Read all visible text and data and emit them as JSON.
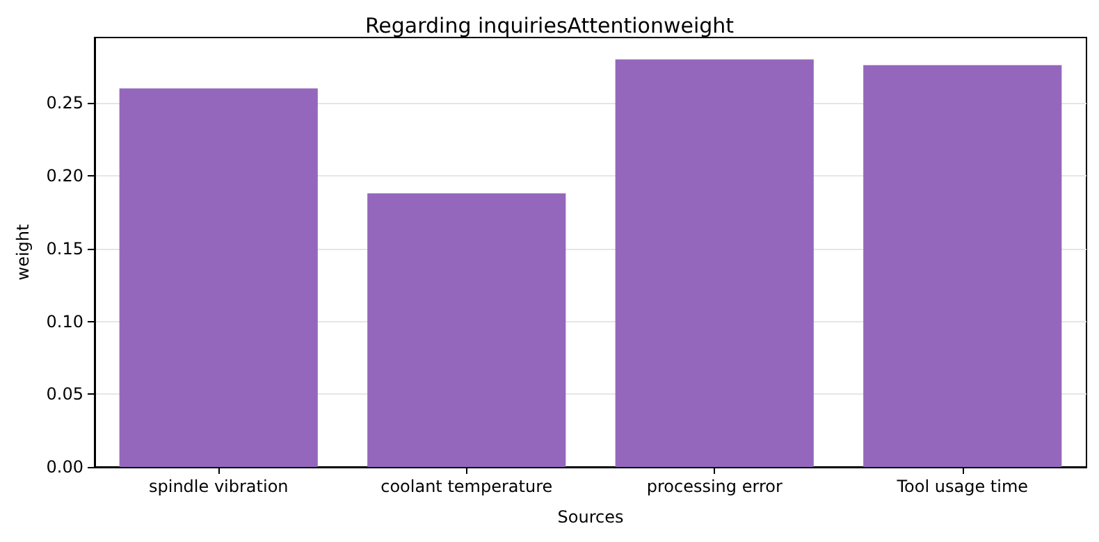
{
  "chart_data": {
    "type": "bar",
    "title": "Regarding inquiriesAttentionweight",
    "xlabel": "Sources",
    "ylabel": "weight",
    "categories": [
      "spindle vibration",
      "coolant temperature",
      "processing error",
      "Tool usage time"
    ],
    "values": [
      0.26,
      0.188,
      0.28,
      0.276
    ],
    "color": "#9467bd",
    "ylim": [
      0,
      0.295
    ],
    "yticks": [
      {
        "value": 0,
        "label": "0.00"
      },
      0.05,
      {
        "value": 0.1,
        "label": "0.10"
      },
      0.15,
      {
        "value": 0.2,
        "label": "0.20"
      },
      0.25
    ],
    "grid": "y"
  }
}
